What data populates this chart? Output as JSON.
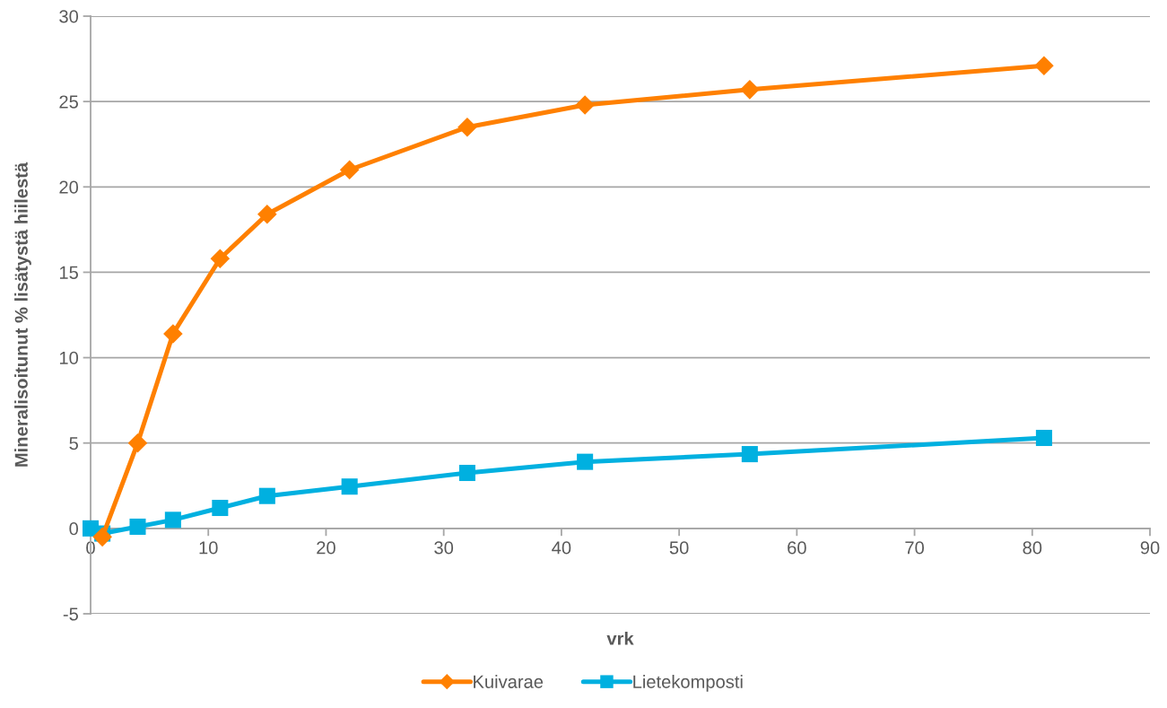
{
  "chart_data": {
    "type": "line",
    "xlabel": "vrk",
    "ylabel": "Mineralisoitunut % lisätystä hiilestä",
    "x": [
      0,
      1,
      4,
      7,
      11,
      15,
      22,
      32,
      42,
      56,
      81
    ],
    "series": [
      {
        "name": "Kuivarae",
        "color": "#ff8000",
        "marker": "diamond",
        "values": [
          null,
          -0.5,
          5.0,
          11.4,
          15.8,
          18.4,
          21.0,
          23.5,
          24.8,
          25.7,
          27.1
        ]
      },
      {
        "name": "Lietekomposti",
        "color": "#00b0e0",
        "marker": "square",
        "values": [
          0,
          -0.3,
          0.1,
          0.5,
          1.2,
          1.9,
          2.45,
          3.25,
          3.9,
          4.35,
          5.3
        ]
      }
    ],
    "xlim": [
      0,
      90
    ],
    "xticks": [
      0,
      10,
      20,
      30,
      40,
      50,
      60,
      70,
      80,
      90
    ],
    "ylim": [
      -5,
      30
    ],
    "yticks": [
      -5,
      0,
      5,
      10,
      15,
      20,
      25,
      30
    ],
    "grid": "y",
    "legend": "bottom",
    "line_style": "solid"
  }
}
